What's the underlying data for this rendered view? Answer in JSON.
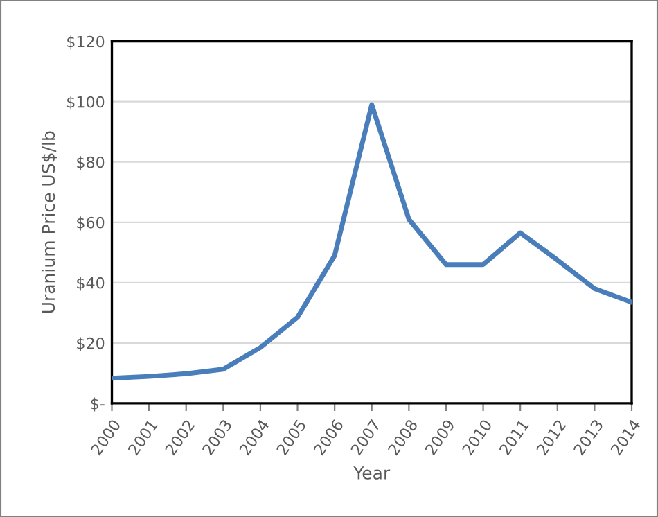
{
  "chart_data": {
    "type": "line",
    "xlabel": "Year",
    "ylabel": "Uranium Price US$/lb",
    "categories": [
      "2000",
      "2001",
      "2002",
      "2003",
      "2004",
      "2005",
      "2006",
      "2007",
      "2008",
      "2009",
      "2010",
      "2011",
      "2012",
      "2013",
      "2014"
    ],
    "series": [
      {
        "color": "#4a7ebb",
        "values": [
          8.3,
          8.9,
          9.8,
          11.3,
          18.5,
          28.5,
          49,
          99,
          61,
          46,
          46,
          56.5,
          47.5,
          38,
          33.5
        ]
      }
    ],
    "ylim": [
      0,
      120
    ],
    "yticks": [
      {
        "value": 0,
        "label": "$-"
      },
      {
        "value": 20,
        "label": "$20"
      },
      {
        "value": 40,
        "label": "$40"
      },
      {
        "value": 60,
        "label": "$60"
      },
      {
        "value": 80,
        "label": "$80"
      },
      {
        "value": 100,
        "label": "$100"
      },
      {
        "value": 120,
        "label": "$120"
      }
    ],
    "grid": "y",
    "legend": false,
    "marker": "none",
    "line_style": "solid"
  }
}
